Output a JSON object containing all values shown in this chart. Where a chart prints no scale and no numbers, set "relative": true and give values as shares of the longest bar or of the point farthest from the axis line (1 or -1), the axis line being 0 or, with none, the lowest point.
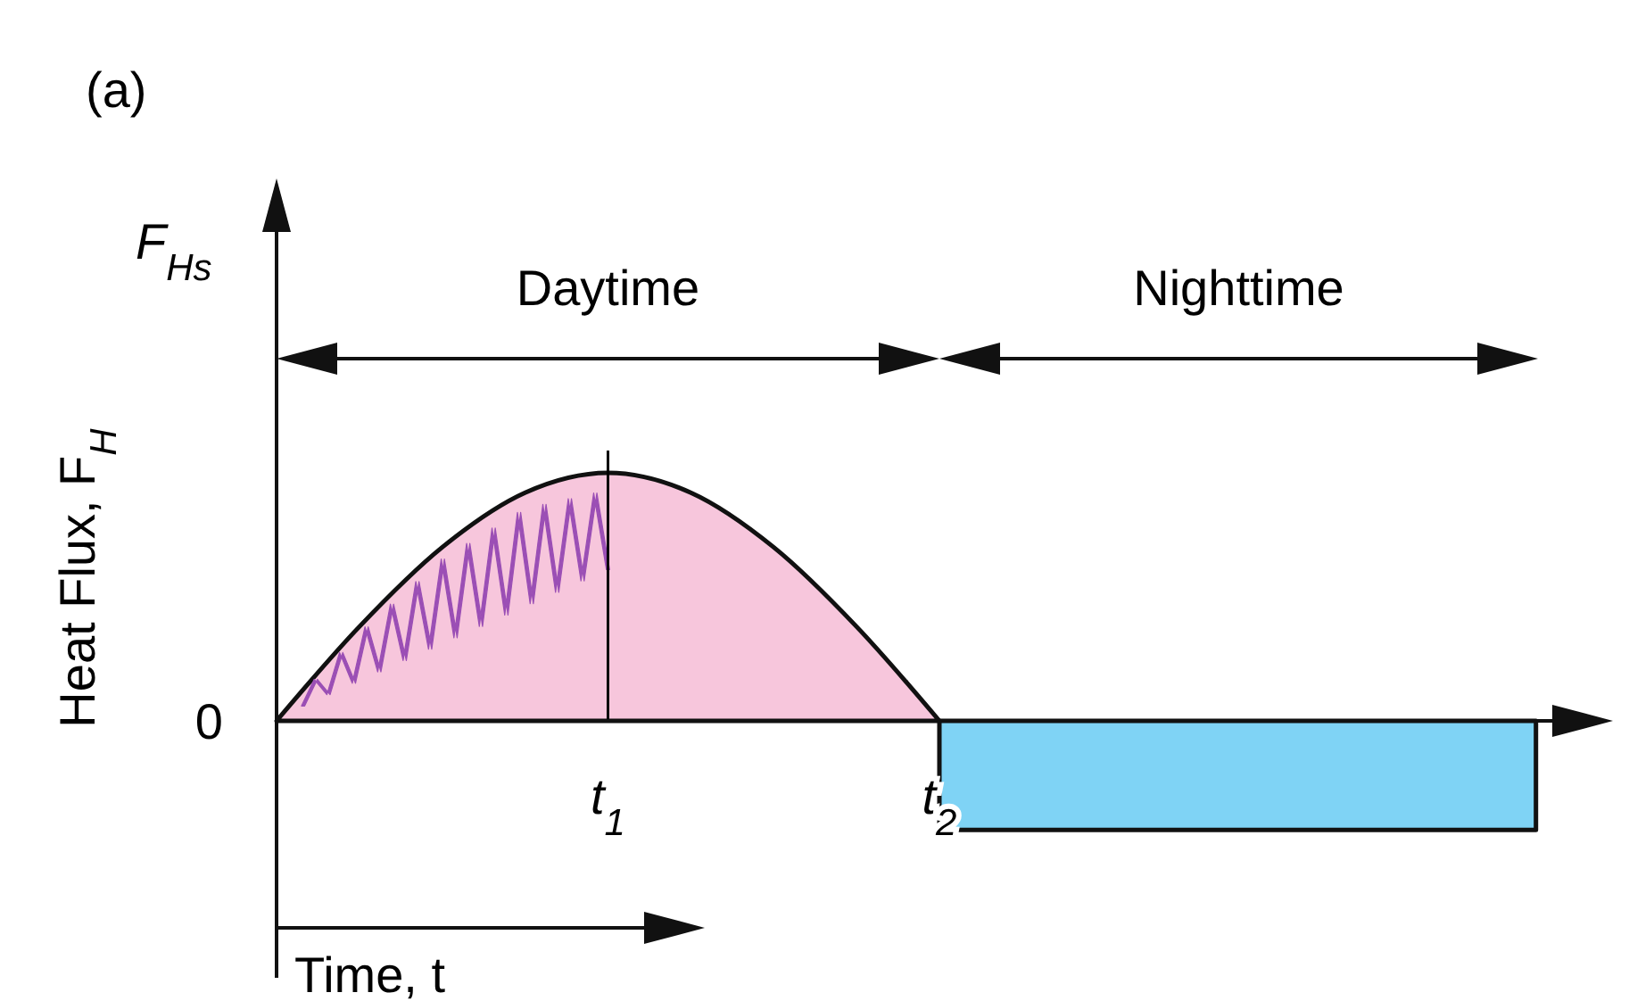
{
  "chart_data": {
    "type": "area",
    "title": "(a)",
    "xlabel": "Time, t",
    "ylabel": "Heat Flux, F$_{H}$",
    "relative": true,
    "xlim": [
      0,
      4
    ],
    "xticks": [
      {
        "value": 1,
        "label": "t$_{1}$"
      },
      {
        "value": 2,
        "label": "t$_{2}$"
      }
    ],
    "series": [
      {
        "color": "#f7c6dc",
        "x": [
          0,
          0.25,
          0.5,
          0.75,
          1,
          1.25,
          1.5,
          1.75,
          2
        ],
        "values": [
          0,
          0.38,
          0.7,
          0.92,
          1,
          0.92,
          0.7,
          0.38,
          0
        ]
      },
      {
        "color": "#7fd3f5",
        "x": [
          2,
          3.8
        ],
        "values": [
          -0.44,
          -0.44
        ]
      }
    ],
    "ref_lines": [
      {
        "axis": "x",
        "value": 1,
        "color": "#000000"
      }
    ],
    "annotations": [
      "F$_{Hs}$",
      {
        "text": "0",
        "x": 0,
        "y": 0
      },
      "Daytime",
      "Nighttime"
    ]
  }
}
